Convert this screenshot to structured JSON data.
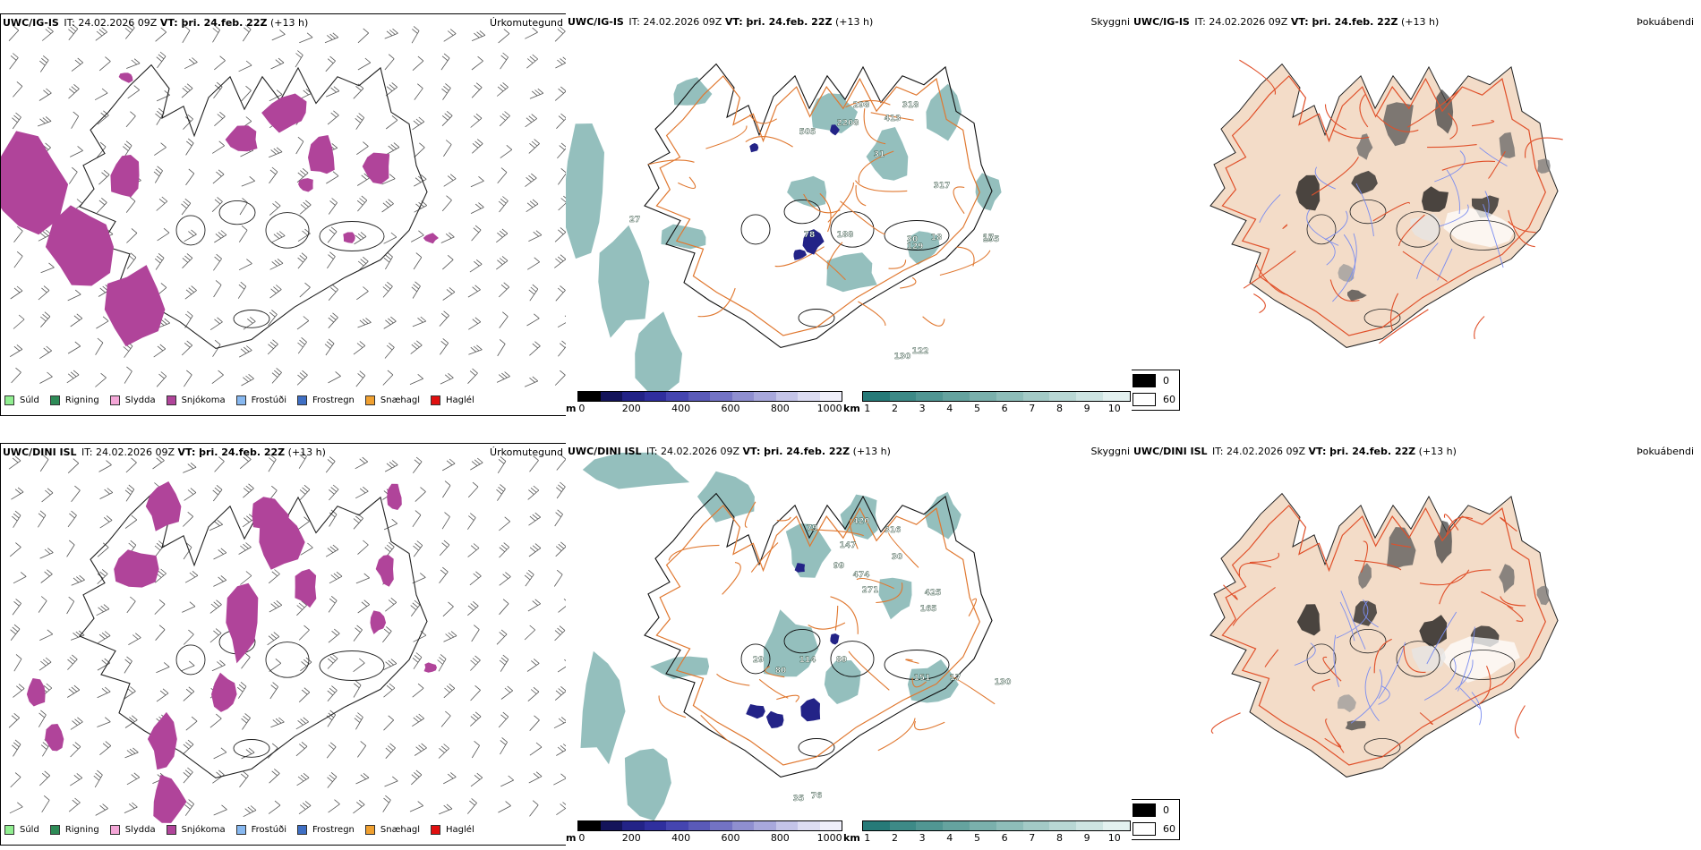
{
  "rows": [
    {
      "model": "UWC/IG-IS",
      "it_label": "IT:",
      "it_value": "24.02.2026 09Z",
      "vt_label": "VT: þri. 24.feb. 22Z",
      "lead": "(+13 h)",
      "precip_title": "Úrkomutegund",
      "cloud_title": "Skyggni",
      "fog_title": "Þokuábendi",
      "cloud_labels": [
        "298",
        "318",
        "2208",
        "413",
        "505",
        "31",
        "317",
        "27",
        "78",
        "188",
        "30",
        "129",
        "18",
        "155",
        "17",
        "130",
        "122"
      ]
    },
    {
      "model": "UWC/DINI ISL",
      "it_label": "IT:",
      "it_value": "24.02.2026 09Z",
      "vt_label": "VT: þri. 24.feb. 22Z",
      "lead": "(+13 h)",
      "precip_title": "Úrkomutegund",
      "cloud_title": "Skyggni",
      "fog_title": "Þokuábendi",
      "cloud_labels": [
        "79",
        "420",
        "316",
        "147",
        "30",
        "99",
        "474",
        "271",
        "425",
        "165",
        "114",
        "89",
        "151",
        "17",
        "130",
        "29",
        "80",
        "35",
        "76"
      ]
    }
  ],
  "precip_legend": [
    {
      "label": "Súld",
      "color": "#90ee90"
    },
    {
      "label": "Rigning",
      "color": "#2e8b57"
    },
    {
      "label": "Slydda",
      "color": "#f4a6d7"
    },
    {
      "label": "Snjókoma",
      "color": "#b0449a"
    },
    {
      "label": "Frostúði",
      "color": "#87b8f0"
    },
    {
      "label": "Frostregn",
      "color": "#3f6fc4"
    },
    {
      "label": "Snæhagl",
      "color": "#f0a030"
    },
    {
      "label": "Haglél",
      "color": "#e01010"
    }
  ],
  "ceiling_scale": {
    "unit": "m",
    "ticks": [
      "0",
      "200",
      "400",
      "600",
      "800",
      "1000"
    ],
    "colors": [
      "#000000",
      "#14145a",
      "#232387",
      "#2f2f9e",
      "#4545b0",
      "#5a5ab8",
      "#7373c4",
      "#8f8fd0",
      "#a8a8dc",
      "#c4c4e8",
      "#dcdcf2",
      "#efeffa"
    ]
  },
  "visibility_scale": {
    "unit": "km",
    "ticks": [
      "1",
      "2",
      "3",
      "4",
      "5",
      "6",
      "7",
      "8",
      "9",
      "10"
    ],
    "colors": [
      "#267a78",
      "#3d8a87",
      "#519693",
      "#65a39f",
      "#7ab0ac",
      "#8ebdb9",
      "#a3cac6",
      "#b8d7d4",
      "#cde4e2",
      "#e3f1f0"
    ]
  },
  "fog_legend": [
    {
      "label": "0",
      "color": "#000000"
    },
    {
      "label": "60",
      "color": "#ffffff"
    }
  ],
  "colors": {
    "snow": "#b0449a",
    "teal": "#3d8a87",
    "navy": "#232387",
    "roads": "#e07830",
    "land_fog": "#f3dcc8",
    "fog_roads": "#e0502a",
    "rivers": "#7a8cf0"
  }
}
